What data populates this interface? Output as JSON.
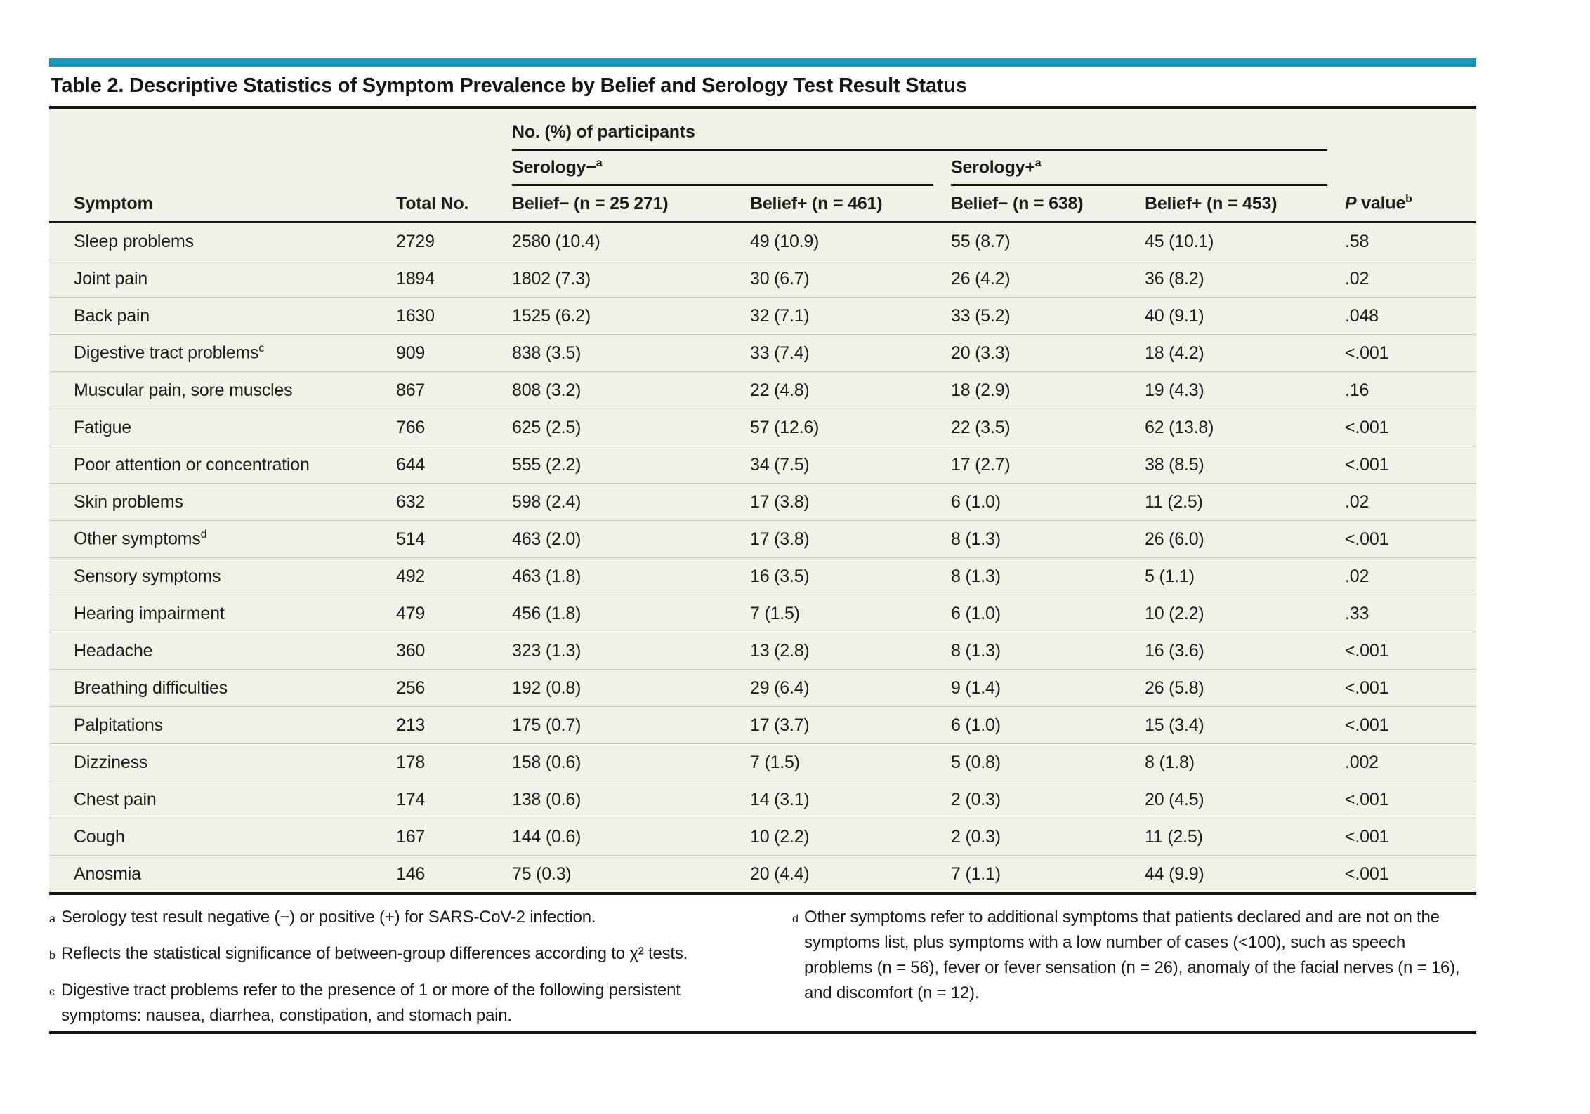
{
  "page": {
    "accent_color": "#1a96be",
    "table_bg": "#f2f1e8"
  },
  "title": "Table 2. Descriptive Statistics of Symptom Prevalence by Belief and Serology Test Result Status",
  "header": {
    "spanner": "No. (%) of participants",
    "serology_neg": {
      "label": "Serology−",
      "sup": "a"
    },
    "serology_pos": {
      "label": "Serology+",
      "sup": "a"
    },
    "columns": {
      "symptom": "Symptom",
      "total": "Total No.",
      "sneg_bneg": "Belief− (n = 25 271)",
      "sneg_bpos": "Belief+ (n = 461)",
      "spos_bneg": "Belief− (n = 638)",
      "spos_bpos": "Belief+ (n = 453)",
      "pvalue": {
        "italic": "P",
        "rest": " value",
        "sup": "b"
      }
    }
  },
  "rows": [
    {
      "symptom": "Sleep problems",
      "total": "2729",
      "sneg_bneg": "2580 (10.4)",
      "sneg_bpos": "49 (10.9)",
      "spos_bneg": "55 (8.7)",
      "spos_bpos": "45 (10.1)",
      "p": ".58"
    },
    {
      "symptom": "Joint pain",
      "total": "1894",
      "sneg_bneg": "1802 (7.3)",
      "sneg_bpos": "30 (6.7)",
      "spos_bneg": "26 (4.2)",
      "spos_bpos": "36 (8.2)",
      "p": ".02"
    },
    {
      "symptom": "Back pain",
      "total": "1630",
      "sneg_bneg": "1525 (6.2)",
      "sneg_bpos": "32 (7.1)",
      "spos_bneg": "33 (5.2)",
      "spos_bpos": "40 (9.1)",
      "p": ".048"
    },
    {
      "symptom": "Digestive tract problems",
      "sup": "c",
      "total": "909",
      "sneg_bneg": "838 (3.5)",
      "sneg_bpos": "33 (7.4)",
      "spos_bneg": "20 (3.3)",
      "spos_bpos": "18 (4.2)",
      "p": "<.001"
    },
    {
      "symptom": "Muscular pain, sore muscles",
      "total": "867",
      "sneg_bneg": "808 (3.2)",
      "sneg_bpos": "22 (4.8)",
      "spos_bneg": "18 (2.9)",
      "spos_bpos": "19 (4.3)",
      "p": ".16"
    },
    {
      "symptom": "Fatigue",
      "total": "766",
      "sneg_bneg": "625 (2.5)",
      "sneg_bpos": "57 (12.6)",
      "spos_bneg": "22 (3.5)",
      "spos_bpos": "62 (13.8)",
      "p": "<.001"
    },
    {
      "symptom": "Poor attention or concentration",
      "total": "644",
      "sneg_bneg": "555 (2.2)",
      "sneg_bpos": "34 (7.5)",
      "spos_bneg": "17 (2.7)",
      "spos_bpos": "38 (8.5)",
      "p": "<.001"
    },
    {
      "symptom": "Skin problems",
      "total": "632",
      "sneg_bneg": "598 (2.4)",
      "sneg_bpos": "17 (3.8)",
      "spos_bneg": "6 (1.0)",
      "spos_bpos": "11 (2.5)",
      "p": ".02"
    },
    {
      "symptom": "Other symptoms",
      "sup": "d",
      "total": "514",
      "sneg_bneg": "463 (2.0)",
      "sneg_bpos": "17 (3.8)",
      "spos_bneg": "8 (1.3)",
      "spos_bpos": "26 (6.0)",
      "p": "<.001"
    },
    {
      "symptom": "Sensory symptoms",
      "total": "492",
      "sneg_bneg": "463 (1.8)",
      "sneg_bpos": "16 (3.5)",
      "spos_bneg": "8 (1.3)",
      "spos_bpos": "5 (1.1)",
      "p": ".02"
    },
    {
      "symptom": "Hearing impairment",
      "total": "479",
      "sneg_bneg": "456 (1.8)",
      "sneg_bpos": "7 (1.5)",
      "spos_bneg": "6 (1.0)",
      "spos_bpos": "10 (2.2)",
      "p": ".33"
    },
    {
      "symptom": "Headache",
      "total": "360",
      "sneg_bneg": "323 (1.3)",
      "sneg_bpos": "13 (2.8)",
      "spos_bneg": "8 (1.3)",
      "spos_bpos": "16 (3.6)",
      "p": "<.001"
    },
    {
      "symptom": "Breathing difficulties",
      "total": "256",
      "sneg_bneg": "192 (0.8)",
      "sneg_bpos": "29 (6.4)",
      "spos_bneg": "9 (1.4)",
      "spos_bpos": "26 (5.8)",
      "p": "<.001"
    },
    {
      "symptom": "Palpitations",
      "total": "213",
      "sneg_bneg": "175 (0.7)",
      "sneg_bpos": "17 (3.7)",
      "spos_bneg": "6 (1.0)",
      "spos_bpos": "15 (3.4)",
      "p": "<.001"
    },
    {
      "symptom": "Dizziness",
      "total": "178",
      "sneg_bneg": "158 (0.6)",
      "sneg_bpos": "7 (1.5)",
      "spos_bneg": "5 (0.8)",
      "spos_bpos": "8 (1.8)",
      "p": ".002"
    },
    {
      "symptom": "Chest pain",
      "total": "174",
      "sneg_bneg": "138 (0.6)",
      "sneg_bpos": "14 (3.1)",
      "spos_bneg": "2 (0.3)",
      "spos_bpos": "20 (4.5)",
      "p": "<.001"
    },
    {
      "symptom": "Cough",
      "total": "167",
      "sneg_bneg": "144 (0.6)",
      "sneg_bpos": "10 (2.2)",
      "spos_bneg": "2 (0.3)",
      "spos_bpos": "11 (2.5)",
      "p": "<.001"
    },
    {
      "symptom": "Anosmia",
      "total": "146",
      "sneg_bneg": "75 (0.3)",
      "sneg_bpos": "20 (4.4)",
      "spos_bneg": "7 (1.1)",
      "spos_bpos": "44 (9.9)",
      "p": "<.001"
    }
  ],
  "footnotes": {
    "left": [
      {
        "marker": "a",
        "text": "Serology test result negative (−) or positive (+) for SARS-CoV-2 infection."
      },
      {
        "marker": "b",
        "text": "Reflects the statistical significance of between-group differences according to χ² tests."
      },
      {
        "marker": "c",
        "text": "Digestive tract problems refer to the presence of 1 or more of the following persistent symptoms: nausea, diarrhea, constipation, and stomach pain."
      }
    ],
    "right": [
      {
        "marker": "d",
        "text": "Other symptoms refer to additional symptoms that patients declared and are not on the symptoms list, plus symptoms with a low number of cases (<100), such as speech problems (n = 56), fever or fever sensation (n = 26), anomaly of the facial nerves (n = 16), and discomfort (n = 12)."
      }
    ]
  }
}
